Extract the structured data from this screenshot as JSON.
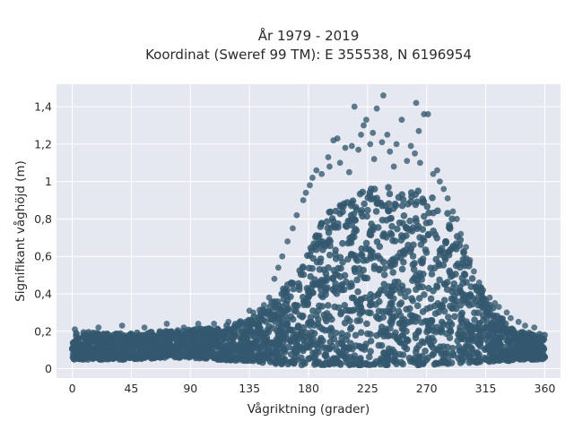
{
  "chart_data": {
    "type": "scatter",
    "title_lines": [
      "År 1979 - 2019",
      "Koordinat (Sweref 99 TM): E 355538, N 6196954"
    ],
    "xlabel": "Vågriktning (grader)",
    "ylabel": "Signifikant våghöjd (m)",
    "xlim": [
      -12,
      372
    ],
    "ylim": [
      -0.05,
      1.52
    ],
    "xticks": [
      0,
      45,
      90,
      135,
      180,
      225,
      270,
      315,
      360
    ],
    "xtick_labels": [
      "0",
      "45",
      "90",
      "135",
      "180",
      "225",
      "270",
      "315",
      "360"
    ],
    "yticks": [
      0,
      0.2,
      0.4,
      0.6,
      0.8,
      1.0,
      1.2,
      1.4
    ],
    "ytick_labels": [
      "0",
      "0,2",
      "0,4",
      "0,6",
      "0,8",
      "1",
      "1,2",
      "1,4"
    ],
    "grid": true,
    "marker_color": "#34586f",
    "background_color": "#e5e8f0",
    "envelope": {
      "x": [
        0,
        20,
        45,
        70,
        90,
        110,
        135,
        150,
        160,
        170,
        180,
        190,
        200,
        210,
        220,
        230,
        240,
        250,
        260,
        270,
        280,
        290,
        300,
        310,
        320,
        330,
        340,
        350,
        360
      ],
      "lower": [
        0.05,
        0.05,
        0.05,
        0.06,
        0.06,
        0.05,
        0.04,
        0.03,
        0.02,
        0.02,
        0.02,
        0.02,
        0.02,
        0.02,
        0.02,
        0.02,
        0.02,
        0.02,
        0.02,
        0.02,
        0.02,
        0.02,
        0.03,
        0.03,
        0.04,
        0.04,
        0.05,
        0.05,
        0.05
      ],
      "upper": [
        0.2,
        0.19,
        0.19,
        0.2,
        0.21,
        0.22,
        0.27,
        0.35,
        0.42,
        0.52,
        0.62,
        0.78,
        0.88,
        0.92,
        0.95,
        0.97,
        0.97,
        0.96,
        0.95,
        0.95,
        0.88,
        0.8,
        0.62,
        0.45,
        0.33,
        0.25,
        0.2,
        0.19,
        0.19
      ]
    },
    "outliers": [
      {
        "x": 237,
        "y": 1.46
      },
      {
        "x": 262,
        "y": 1.42
      },
      {
        "x": 215,
        "y": 1.4
      },
      {
        "x": 232,
        "y": 1.39
      },
      {
        "x": 271,
        "y": 1.36
      },
      {
        "x": 268,
        "y": 1.36
      },
      {
        "x": 224,
        "y": 1.33
      },
      {
        "x": 251,
        "y": 1.33
      },
      {
        "x": 222,
        "y": 1.3
      },
      {
        "x": 229,
        "y": 1.26
      },
      {
        "x": 264,
        "y": 1.27
      },
      {
        "x": 220,
        "y": 1.25
      },
      {
        "x": 202,
        "y": 1.23
      },
      {
        "x": 199,
        "y": 1.22
      },
      {
        "x": 240,
        "y": 1.25
      },
      {
        "x": 213,
        "y": 1.19
      },
      {
        "x": 247,
        "y": 1.2
      },
      {
        "x": 227,
        "y": 1.2
      },
      {
        "x": 236,
        "y": 1.21
      },
      {
        "x": 258,
        "y": 1.19
      },
      {
        "x": 218,
        "y": 1.17
      },
      {
        "x": 208,
        "y": 1.18
      },
      {
        "x": 242,
        "y": 1.16
      },
      {
        "x": 261,
        "y": 1.15
      },
      {
        "x": 195,
        "y": 1.13
      },
      {
        "x": 230,
        "y": 1.12
      },
      {
        "x": 255,
        "y": 1.11
      },
      {
        "x": 204,
        "y": 1.1
      },
      {
        "x": 265,
        "y": 1.1
      },
      {
        "x": 196,
        "y": 1.08
      },
      {
        "x": 278,
        "y": 1.06
      },
      {
        "x": 186,
        "y": 1.06
      },
      {
        "x": 190,
        "y": 1.04
      },
      {
        "x": 275,
        "y": 1.04
      },
      {
        "x": 183,
        "y": 1.02
      },
      {
        "x": 211,
        "y": 1.05
      },
      {
        "x": 245,
        "y": 1.08
      },
      {
        "x": 280,
        "y": 1.0
      },
      {
        "x": 181,
        "y": 0.98
      },
      {
        "x": 283,
        "y": 0.96
      },
      {
        "x": 178,
        "y": 0.94
      },
      {
        "x": 286,
        "y": 0.91
      },
      {
        "x": 176,
        "y": 0.9
      },
      {
        "x": 290,
        "y": 0.84
      },
      {
        "x": 171,
        "y": 0.82
      },
      {
        "x": 293,
        "y": 0.8
      },
      {
        "x": 168,
        "y": 0.75
      },
      {
        "x": 296,
        "y": 0.72
      },
      {
        "x": 164,
        "y": 0.68
      },
      {
        "x": 300,
        "y": 0.65
      },
      {
        "x": 160,
        "y": 0.6
      },
      {
        "x": 303,
        "y": 0.58
      },
      {
        "x": 157,
        "y": 0.54
      },
      {
        "x": 306,
        "y": 0.52
      },
      {
        "x": 154,
        "y": 0.48
      },
      {
        "x": 310,
        "y": 0.46
      },
      {
        "x": 313,
        "y": 0.42
      },
      {
        "x": 150,
        "y": 0.38
      },
      {
        "x": 318,
        "y": 0.38
      },
      {
        "x": 322,
        "y": 0.35
      },
      {
        "x": 146,
        "y": 0.34
      },
      {
        "x": 325,
        "y": 0.33
      },
      {
        "x": 331,
        "y": 0.3
      },
      {
        "x": 135,
        "y": 0.31
      },
      {
        "x": 138,
        "y": 0.3
      },
      {
        "x": 326,
        "y": 0.27
      },
      {
        "x": 334,
        "y": 0.27
      },
      {
        "x": 340,
        "y": 0.25
      },
      {
        "x": 72,
        "y": 0.24
      },
      {
        "x": 38,
        "y": 0.23
      },
      {
        "x": 96,
        "y": 0.24
      },
      {
        "x": 119,
        "y": 0.25
      },
      {
        "x": 127,
        "y": 0.24
      },
      {
        "x": 108,
        "y": 0.24
      },
      {
        "x": 345,
        "y": 0.23
      },
      {
        "x": 20,
        "y": 0.22
      },
      {
        "x": 55,
        "y": 0.22
      },
      {
        "x": 85,
        "y": 0.22
      },
      {
        "x": 2,
        "y": 0.21
      },
      {
        "x": 352,
        "y": 0.22
      }
    ]
  }
}
